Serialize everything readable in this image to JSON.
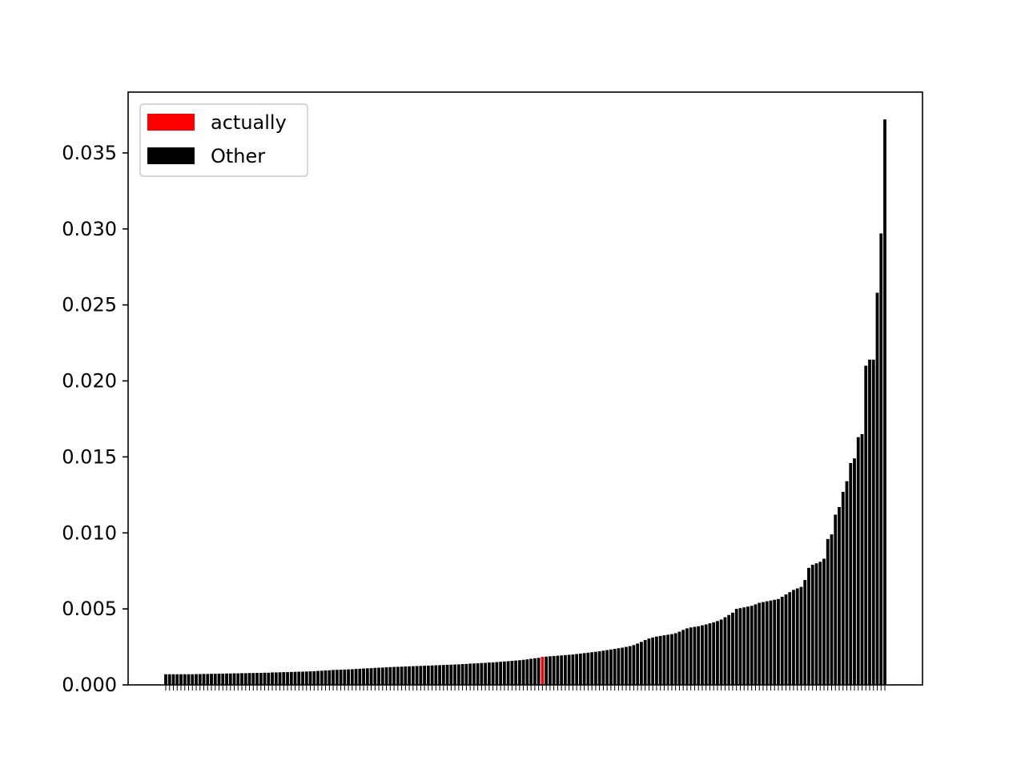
{
  "chart_data": {
    "type": "bar",
    "title": "",
    "xlabel": "",
    "ylabel": "",
    "ylim": [
      0,
      0.039
    ],
    "yticks": [
      "0.000",
      "0.005",
      "0.010",
      "0.015",
      "0.020",
      "0.025",
      "0.030",
      "0.035"
    ],
    "grid": false,
    "legend_position": "upper-left",
    "legend": [
      {
        "label": "actually",
        "color": "#ff0000"
      },
      {
        "label": "Other",
        "color": "#000000"
      }
    ],
    "highlight_index": 99,
    "values": [
      0.0007,
      0.0007,
      0.0007,
      0.0007,
      0.0007,
      0.0007,
      0.0007,
      0.0007,
      0.00071,
      0.00071,
      0.00072,
      0.00072,
      0.00073,
      0.00073,
      0.00074,
      0.00074,
      0.00075,
      0.00075,
      0.00076,
      0.00076,
      0.00077,
      0.00077,
      0.00078,
      0.00078,
      0.00079,
      0.00079,
      0.0008,
      0.0008,
      0.00082,
      0.00082,
      0.00083,
      0.00084,
      0.00084,
      0.00085,
      0.00086,
      0.00087,
      0.00087,
      0.00088,
      0.00089,
      0.0009,
      0.00092,
      0.00093,
      0.00095,
      0.00096,
      0.00098,
      0.00099,
      0.001,
      0.00101,
      0.00102,
      0.00103,
      0.00105,
      0.00106,
      0.00108,
      0.00109,
      0.0011,
      0.00112,
      0.00113,
      0.00114,
      0.00116,
      0.00117,
      0.00118,
      0.00119,
      0.0012,
      0.00121,
      0.00122,
      0.00123,
      0.00124,
      0.00125,
      0.00126,
      0.00127,
      0.00128,
      0.00129,
      0.0013,
      0.00131,
      0.00132,
      0.00133,
      0.00134,
      0.00135,
      0.00137,
      0.00138,
      0.0014,
      0.00141,
      0.00142,
      0.00144,
      0.00145,
      0.00147,
      0.00148,
      0.0015,
      0.00152,
      0.00154,
      0.00156,
      0.00158,
      0.0016,
      0.00162,
      0.00165,
      0.00168,
      0.00172,
      0.00175,
      0.00178,
      0.00185,
      0.00186,
      0.00188,
      0.0019,
      0.00192,
      0.00194,
      0.00196,
      0.00198,
      0.002,
      0.00203,
      0.00206,
      0.00209,
      0.00212,
      0.00215,
      0.00218,
      0.00221,
      0.00225,
      0.00229,
      0.00233,
      0.00237,
      0.00241,
      0.00245,
      0.0025,
      0.00255,
      0.00262,
      0.00272,
      0.00283,
      0.00295,
      0.00305,
      0.00312,
      0.00318,
      0.00322,
      0.00326,
      0.0033,
      0.00334,
      0.0034,
      0.0035,
      0.00362,
      0.00372,
      0.00378,
      0.00382,
      0.00386,
      0.00392,
      0.00398,
      0.00405,
      0.00412,
      0.0042,
      0.0043,
      0.00445,
      0.0046,
      0.00475,
      0.005,
      0.00505,
      0.0051,
      0.00515,
      0.0052,
      0.0053,
      0.0054,
      0.00545,
      0.0055,
      0.00555,
      0.0056,
      0.00565,
      0.0058,
      0.00595,
      0.0061,
      0.00625,
      0.00635,
      0.00645,
      0.0069,
      0.0077,
      0.0079,
      0.008,
      0.0081,
      0.0083,
      0.0096,
      0.0099,
      0.0112,
      0.0117,
      0.0127,
      0.0134,
      0.0146,
      0.0149,
      0.0163,
      0.0165,
      0.021,
      0.0214,
      0.0214,
      0.0258,
      0.0297,
      0.0372
    ]
  }
}
